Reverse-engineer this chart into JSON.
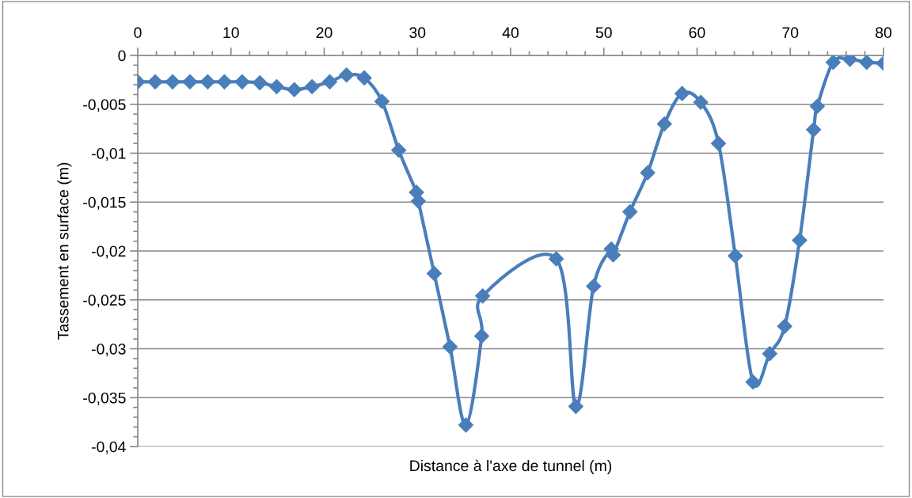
{
  "chart_data": {
    "type": "line",
    "xlabel": "Distance à l'axe de tunnel (m)",
    "ylabel": "Tassement en surface (m)",
    "marker": "diamond",
    "line_style": "solid",
    "grid": "y",
    "legend": false,
    "x": [
      0,
      1.87,
      3.74,
      5.6,
      7.5,
      9.3,
      11.2,
      13.1,
      14.9,
      16.8,
      18.7,
      20.6,
      22.4,
      24.3,
      26.2,
      28.0,
      29.9,
      30.1,
      31.8,
      33.5,
      35.2,
      36.9,
      37.0,
      44.9,
      47.0,
      48.9,
      50.8,
      51.0,
      52.8,
      54.7,
      56.5,
      58.4,
      60.4,
      62.3,
      64.1,
      66.0,
      67.8,
      69.4,
      71.0,
      72.5,
      72.9,
      74.6,
      76.4,
      78.2,
      80.0
    ],
    "series": [
      {
        "color": "#4a7ebb",
        "values": [
          -0.0027,
          -0.0027,
          -0.0027,
          -0.0027,
          -0.0027,
          -0.0027,
          -0.0027,
          -0.0028,
          -0.0032,
          -0.0035,
          -0.0032,
          -0.0027,
          -0.002,
          -0.0023,
          -0.0047,
          -0.0097,
          -0.014,
          -0.0149,
          -0.0223,
          -0.0298,
          -0.0378,
          -0.0287,
          -0.0246,
          -0.0208,
          -0.0359,
          -0.0236,
          -0.0198,
          -0.0204,
          -0.016,
          -0.012,
          -0.007,
          -0.0039,
          -0.0048,
          -0.009,
          -0.0205,
          -0.0334,
          -0.0305,
          -0.0277,
          -0.0189,
          -0.0076,
          -0.0052,
          -0.0007,
          -0.0004,
          -0.0007,
          -0.0008
        ]
      }
    ],
    "xlim": [
      0,
      80
    ],
    "xticks": [
      0,
      {
        "value": 2,
        "label": null
      },
      {
        "value": 4,
        "label": null
      },
      {
        "value": 6,
        "label": null
      },
      {
        "value": 8,
        "label": null
      },
      10,
      {
        "value": 12,
        "label": null
      },
      {
        "value": 14,
        "label": null
      },
      {
        "value": 16,
        "label": null
      },
      {
        "value": 18,
        "label": null
      },
      20,
      {
        "value": 22,
        "label": null
      },
      {
        "value": 24,
        "label": null
      },
      {
        "value": 26,
        "label": null
      },
      {
        "value": 28,
        "label": null
      },
      30,
      {
        "value": 32,
        "label": null
      },
      {
        "value": 34,
        "label": null
      },
      {
        "value": 36,
        "label": null
      },
      {
        "value": 38,
        "label": null
      },
      40,
      {
        "value": 42,
        "label": null
      },
      {
        "value": 44,
        "label": null
      },
      {
        "value": 46,
        "label": null
      },
      {
        "value": 48,
        "label": null
      },
      50,
      {
        "value": 52,
        "label": null
      },
      {
        "value": 54,
        "label": null
      },
      {
        "value": 56,
        "label": null
      },
      {
        "value": 58,
        "label": null
      },
      60,
      {
        "value": 62,
        "label": null
      },
      {
        "value": 64,
        "label": null
      },
      {
        "value": 66,
        "label": null
      },
      {
        "value": 68,
        "label": null
      },
      70,
      {
        "value": 72,
        "label": null
      },
      {
        "value": 74,
        "label": null
      },
      {
        "value": 76,
        "label": null
      },
      {
        "value": 78,
        "label": null
      },
      80
    ],
    "ylim": [
      -0.04,
      0
    ],
    "yticks": [
      0,
      {
        "value": -0.005,
        "label": "-0,005"
      },
      {
        "value": -0.01,
        "label": "-0,01"
      },
      {
        "value": -0.015,
        "label": "-0,015"
      },
      {
        "value": -0.02,
        "label": "-0,02"
      },
      {
        "value": -0.025,
        "label": "-0,025"
      },
      {
        "value": -0.03,
        "label": "-0,03"
      },
      {
        "value": -0.035,
        "label": "-0,035"
      },
      {
        "value": -0.04,
        "label": "-0,04"
      },
      {
        "value": -0.001,
        "label": null
      },
      {
        "value": -0.002,
        "label": null
      },
      {
        "value": -0.003,
        "label": null
      },
      {
        "value": -0.004,
        "label": null
      },
      {
        "value": -0.006,
        "label": null
      },
      {
        "value": -0.007,
        "label": null
      },
      {
        "value": -0.008,
        "label": null
      },
      {
        "value": -0.009,
        "label": null
      },
      {
        "value": -0.011,
        "label": null
      },
      {
        "value": -0.012,
        "label": null
      },
      {
        "value": -0.013,
        "label": null
      },
      {
        "value": -0.014,
        "label": null
      },
      {
        "value": -0.016,
        "label": null
      },
      {
        "value": -0.017,
        "label": null
      },
      {
        "value": -0.018,
        "label": null
      },
      {
        "value": -0.019,
        "label": null
      },
      {
        "value": -0.021,
        "label": null
      },
      {
        "value": -0.022,
        "label": null
      },
      {
        "value": -0.023,
        "label": null
      },
      {
        "value": -0.024,
        "label": null
      },
      {
        "value": -0.026,
        "label": null
      },
      {
        "value": -0.027,
        "label": null
      },
      {
        "value": -0.028,
        "label": null
      },
      {
        "value": -0.029,
        "label": null
      },
      {
        "value": -0.031,
        "label": null
      },
      {
        "value": -0.032,
        "label": null
      },
      {
        "value": -0.033,
        "label": null
      },
      {
        "value": -0.034,
        "label": null
      },
      {
        "value": -0.036,
        "label": null
      },
      {
        "value": -0.037,
        "label": null
      },
      {
        "value": -0.038,
        "label": null
      },
      {
        "value": -0.039,
        "label": null
      }
    ]
  }
}
